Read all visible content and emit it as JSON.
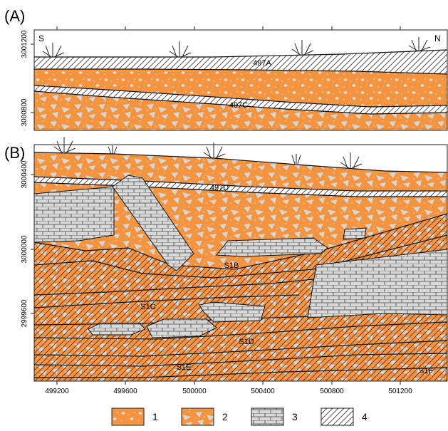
{
  "panels": [
    {
      "label": "(A)",
      "left_end": "S",
      "right_end": "N",
      "y_ticks": [
        "3001200",
        "3000800"
      ],
      "units": [
        "497A",
        "497C"
      ]
    },
    {
      "label": "(B)",
      "y_ticks": [
        "3000400",
        "3000000",
        "2999600"
      ],
      "units": [
        "497D",
        "S1B",
        "S1C",
        "S1D",
        "S1E",
        "S1F"
      ]
    }
  ],
  "x_ticks": [
    "499200",
    "499600",
    "500000",
    "500400",
    "500800",
    "501200"
  ],
  "legend": [
    "1",
    "2",
    "3",
    "4"
  ]
}
